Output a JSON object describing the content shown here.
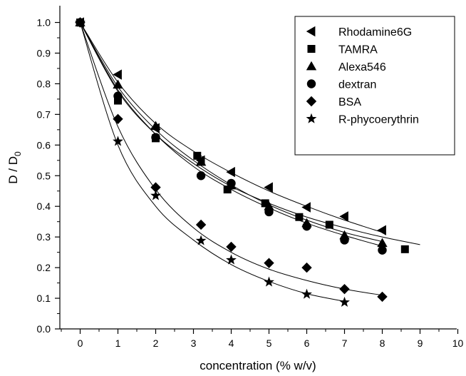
{
  "chart_data": {
    "type": "scatter",
    "title": "",
    "xlabel": "concentration (% w/v)",
    "ylabel_main": "D / D",
    "ylabel_sub": "0",
    "xlim": [
      -0.5,
      10
    ],
    "ylim": [
      0.0,
      1.05
    ],
    "xticks": [
      "0",
      "1",
      "2",
      "3",
      "4",
      "5",
      "6",
      "7",
      "8",
      "9",
      "10"
    ],
    "yticks": [
      "0.0",
      "0.1",
      "0.2",
      "0.3",
      "0.4",
      "0.5",
      "0.6",
      "0.7",
      "0.8",
      "0.9",
      "1.0"
    ],
    "grid": false,
    "legend_position": "top-right",
    "series": [
      {
        "name": "Rhodamine6G",
        "marker": "triangle-left",
        "x": [
          0,
          1,
          2,
          3.2,
          4,
          5,
          6,
          7,
          8
        ],
        "y": [
          1.0,
          0.83,
          0.655,
          0.55,
          0.512,
          0.462,
          0.397,
          0.367,
          0.322
        ],
        "fit": [
          1.0,
          0.805,
          0.67,
          0.58,
          0.51,
          0.45,
          0.4,
          0.355,
          0.315
        ]
      },
      {
        "name": "TAMRA",
        "marker": "square",
        "x": [
          0,
          1,
          2,
          3.1,
          3.9,
          4.9,
          5.8,
          6.6,
          8.6
        ],
        "y": [
          1.0,
          0.745,
          0.622,
          0.565,
          0.455,
          0.41,
          0.365,
          0.34,
          0.26
        ],
        "fit": [
          1.0,
          0.775,
          0.635,
          0.54,
          0.465,
          0.41,
          0.365,
          0.33,
          0.3,
          0.275
        ]
      },
      {
        "name": "Alexa546",
        "marker": "triangle-up",
        "x": [
          0,
          1,
          2,
          3.2,
          4,
          5,
          6,
          7,
          8
        ],
        "y": [
          1.0,
          0.797,
          0.662,
          0.545,
          0.468,
          0.4,
          0.345,
          0.305,
          0.28
        ],
        "fit": [
          1.0,
          0.79,
          0.65,
          0.55,
          0.47,
          0.405,
          0.355,
          0.315,
          0.285
        ]
      },
      {
        "name": "dextran",
        "marker": "circle",
        "x": [
          0,
          1,
          2,
          3.2,
          4,
          5,
          6,
          7,
          8
        ],
        "y": [
          1.0,
          0.76,
          0.625,
          0.5,
          0.475,
          0.382,
          0.335,
          0.29,
          0.257
        ],
        "fit": [
          1.0,
          0.78,
          0.635,
          0.53,
          0.455,
          0.395,
          0.345,
          0.305,
          0.27
        ]
      },
      {
        "name": "BSA",
        "marker": "diamond",
        "x": [
          0,
          1,
          2,
          3.2,
          4,
          5,
          6,
          7,
          8
        ],
        "y": [
          1.0,
          0.685,
          0.462,
          0.34,
          0.268,
          0.215,
          0.2,
          0.13,
          0.105
        ],
        "fit": [
          1.0,
          0.66,
          0.455,
          0.33,
          0.25,
          0.195,
          0.158,
          0.13,
          0.11
        ]
      },
      {
        "name": "R-phycoerythrin",
        "marker": "star",
        "x": [
          0,
          1,
          2,
          3.2,
          4,
          5,
          6,
          7
        ],
        "y": [
          1.0,
          0.612,
          0.435,
          0.288,
          0.225,
          0.153,
          0.113,
          0.087
        ],
        "fit": [
          1.0,
          0.6,
          0.4,
          0.29,
          0.21,
          0.155,
          0.115,
          0.09
        ]
      }
    ]
  }
}
